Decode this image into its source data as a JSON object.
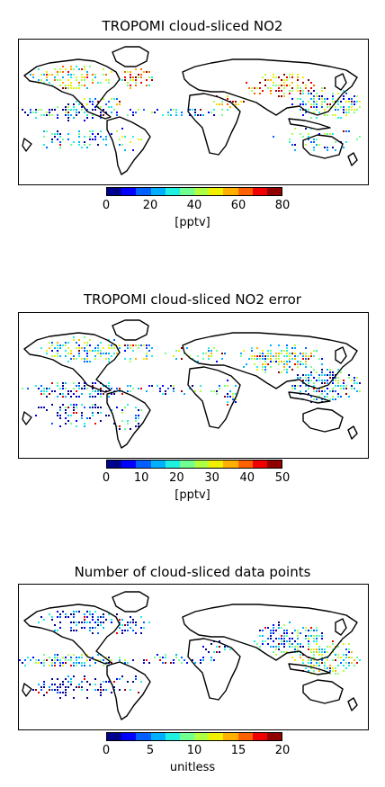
{
  "panels": [
    {
      "title": "TROPOMI cloud-sliced NO2",
      "colorbar": {
        "min": 0,
        "max": 80,
        "ticks": [
          "0",
          "20",
          "40",
          "60",
          "80"
        ],
        "unit": "[pptv]"
      },
      "dominant": "mid-high"
    },
    {
      "title": "TROPOMI cloud-sliced NO2 error",
      "colorbar": {
        "min": 0,
        "max": 50,
        "ticks": [
          "0",
          "10",
          "20",
          "30",
          "40",
          "50"
        ],
        "unit": "[pptv]"
      },
      "dominant": "mid"
    },
    {
      "title": "Number of cloud-sliced data points",
      "colorbar": {
        "min": 0,
        "max": 20,
        "ticks": [
          "0",
          "5",
          "10",
          "15",
          "20"
        ],
        "unit": "unitless"
      },
      "dominant": "low"
    }
  ],
  "colormap": [
    "#00008f",
    "#0000ff",
    "#0060ff",
    "#00b0ff",
    "#20f0e0",
    "#70ff90",
    "#b0ff40",
    "#f0f000",
    "#ffb000",
    "#ff6000",
    "#f00000",
    "#900000"
  ],
  "coastline_color": "#000000"
}
